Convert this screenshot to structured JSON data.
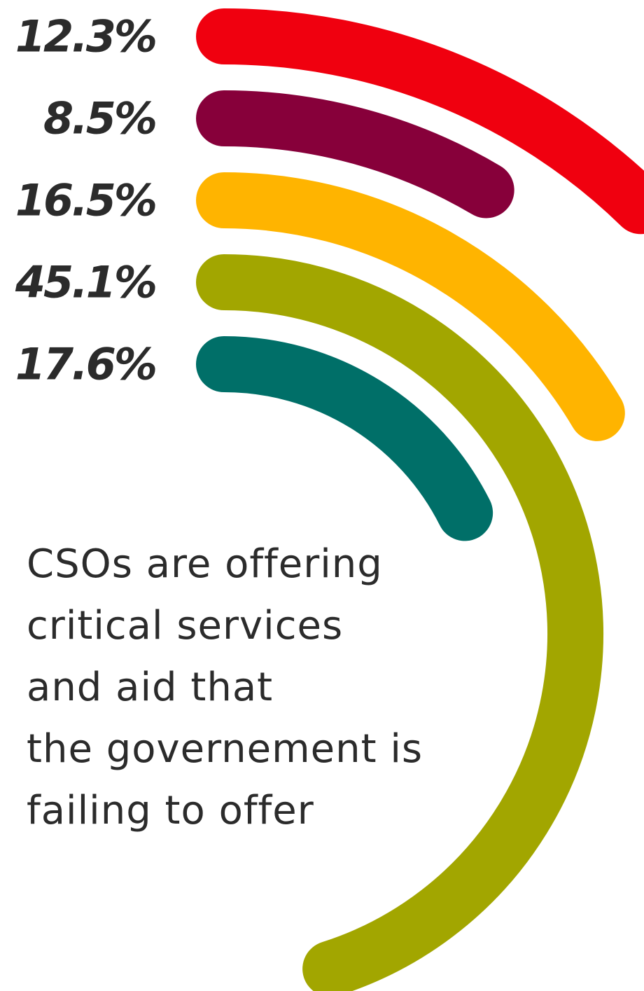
{
  "chart_data": {
    "type": "radial-bar",
    "categories": [
      "12.3%",
      "8.5%",
      "16.5%",
      "45.1%",
      "17.6%"
    ],
    "series": [
      {
        "values": [
          12.3,
          8.5,
          16.5,
          45.1,
          17.6
        ],
        "colors": [
          "#f0000f",
          "#87003a",
          "#ffb400",
          "#a2a600",
          "#006f68"
        ]
      }
    ],
    "value_unit": "%",
    "legend": "none",
    "grid": false
  },
  "caption": {
    "lines": [
      "CSOs are offering",
      "critical services",
      "and aid that",
      "the governement is",
      "failing to offer"
    ]
  }
}
